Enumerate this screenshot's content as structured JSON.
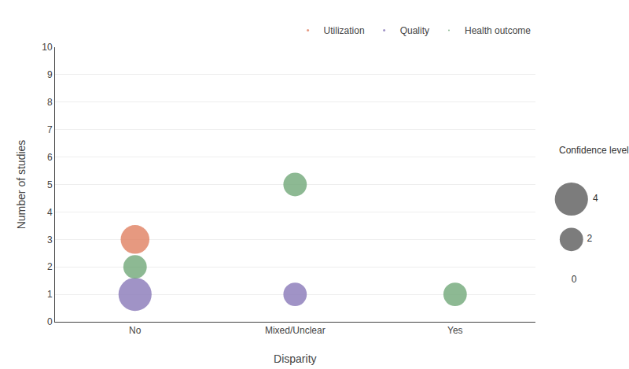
{
  "chart_data": {
    "type": "bubble",
    "ylabel": "Number of studies",
    "xlabel": "Disparity",
    "categories": [
      "No",
      "Mixed/Unclear",
      "Yes"
    ],
    "series": [
      {
        "name": "Utilization",
        "color": "#e08060",
        "x": [
          "No"
        ],
        "values": [
          3
        ],
        "confidence": [
          3
        ]
      },
      {
        "name": "Quality",
        "color": "#8878b8",
        "x": [
          "No",
          "Mixed/Unclear"
        ],
        "values": [
          1,
          1
        ],
        "confidence": [
          4,
          2
        ]
      },
      {
        "name": "Health outcome",
        "color": "#70a878",
        "x": [
          "No",
          "Mixed/Unclear",
          "Yes"
        ],
        "values": [
          2,
          5,
          1
        ],
        "confidence": [
          2,
          2,
          2
        ]
      }
    ],
    "ylim": [
      0,
      10
    ],
    "yticks": [
      0,
      1,
      2,
      3,
      4,
      5,
      6,
      7,
      8,
      9,
      10
    ],
    "grid": true,
    "legend": "upper right",
    "size_legend": {
      "title": "Confidence level",
      "values": [
        4,
        2,
        0
      ]
    }
  }
}
